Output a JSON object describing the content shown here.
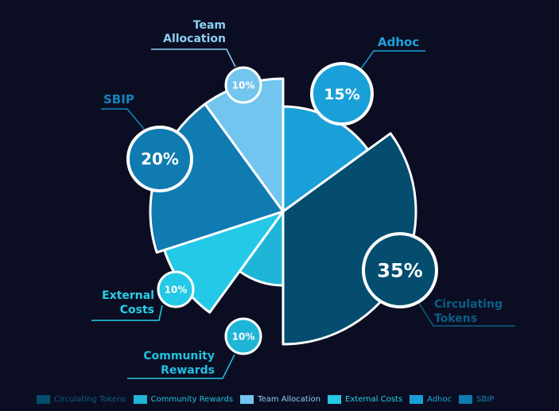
{
  "chart_data": {
    "type": "pie",
    "categories": [
      "Circulating Tokens",
      "Community Rewards",
      "Team Allocation",
      "External Costs",
      "Adhoc",
      "SBIP"
    ],
    "values": [
      35,
      10,
      10,
      10,
      15,
      20
    ],
    "value_labels": [
      "35%",
      "10%",
      "10%",
      "10%",
      "15%",
      "20%"
    ],
    "callout_labels": [
      [
        "Circulating",
        "Tokens"
      ],
      [
        "Community",
        "Rewards"
      ],
      [
        "Team",
        "Allocation"
      ],
      [
        "External",
        "Costs"
      ],
      [
        "Adhoc"
      ],
      [
        "SBIP"
      ]
    ],
    "colors": [
      "#044d6f",
      "#1eb5d6",
      "#72c5ee",
      "#23c9e6",
      "#1aa0d8",
      "#107bb0"
    ],
    "legend": {
      "position": "bottom",
      "items": [
        "Circulating Tokens",
        "Community Rewards",
        "Team Allocation",
        "External Costs",
        "Adhoc",
        "SBIP"
      ]
    },
    "text_colors": {
      "Circulating Tokens": "#0b5f86",
      "Community Rewards": "#22c1e0",
      "Team Allocation": "#8ccff4",
      "External Costs": "#27d0ea",
      "Adhoc": "#1da3dc",
      "SBIP": "#1583bb"
    }
  }
}
